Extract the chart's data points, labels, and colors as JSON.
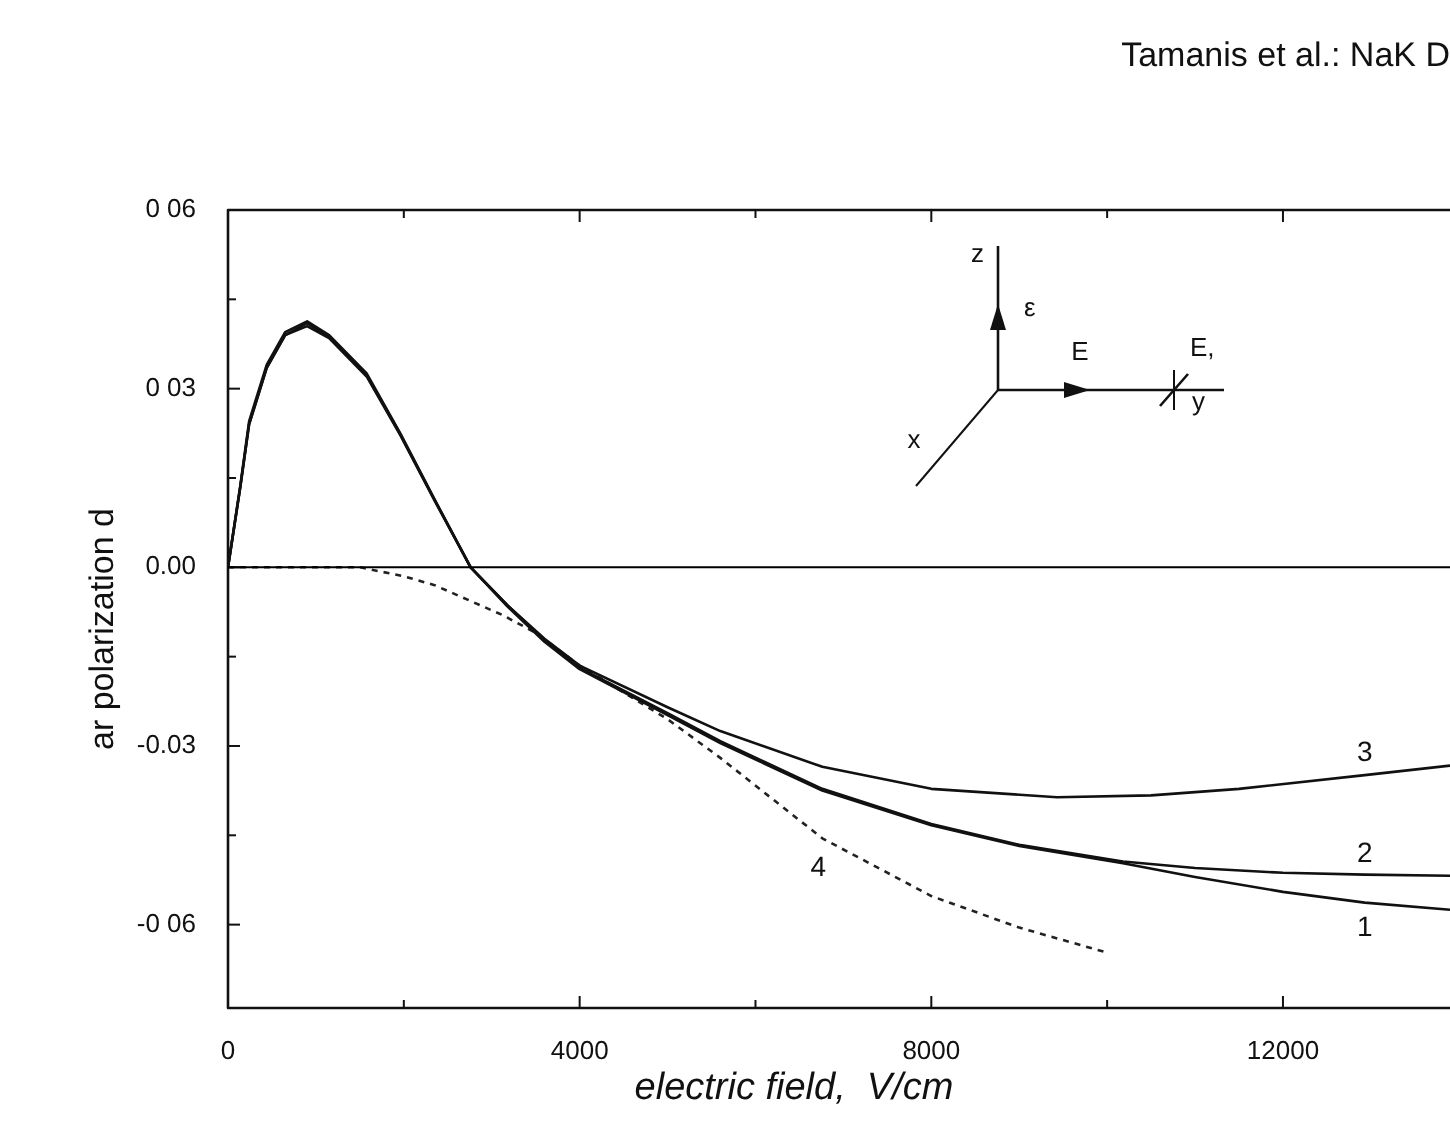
{
  "chart_data": {
    "type": "line",
    "title": "Tamanis et al.: NaK D",
    "xlabel": "electric field,  V/cm",
    "ylabel": "ar polarization d",
    "xlim": [
      0,
      13900
    ],
    "ylim": [
      -0.074,
      0.06
    ],
    "xticks": [
      0,
      {
        "value": 2000,
        "label": null
      },
      4000,
      {
        "value": 6000,
        "label": null
      },
      8000,
      {
        "value": 10000,
        "label": null
      },
      12000
    ],
    "yticks": [
      {
        "value": 0.06,
        "label": "0 06"
      },
      {
        "value": 0.045,
        "label": null
      },
      {
        "value": 0.03,
        "label": "0 03"
      },
      {
        "value": 0.015,
        "label": null
      },
      {
        "value": 0,
        "label": "0.00"
      },
      {
        "value": -0.015,
        "label": null
      },
      {
        "value": -0.03,
        "label": "-0.03"
      },
      {
        "value": -0.045,
        "label": null
      },
      {
        "value": -0.06,
        "label": "-0 06"
      }
    ],
    "grid": false,
    "legend": false,
    "marker": "none",
    "ref_lines": [
      {
        "axis": "y",
        "value": 0,
        "color": "#000000"
      }
    ],
    "series": [
      {
        "name": "1",
        "color": "#111111",
        "line_style": "solid",
        "x": [
          0,
          140,
          240,
          440,
          650,
          900,
          1150,
          1580,
          1960,
          2350,
          2760,
          3180,
          3600,
          4000,
          5000,
          5600,
          6760,
          8000,
          9000,
          10180,
          11000,
          12000,
          12930,
          13900
        ],
        "values": [
          0,
          0.0135,
          0.024,
          0.0335,
          0.039,
          0.0405,
          0.0385,
          0.032,
          0.0222,
          0.0112,
          0,
          -0.0066,
          -0.0125,
          -0.0171,
          -0.0248,
          -0.0295,
          -0.0375,
          -0.0433,
          -0.0468,
          -0.0497,
          -0.052,
          -0.0545,
          -0.0563,
          -0.0575
        ]
      },
      {
        "name": "2",
        "color": "#111111",
        "line_style": "solid",
        "x": [
          0,
          140,
          240,
          440,
          650,
          900,
          1150,
          1580,
          1960,
          2350,
          2760,
          3180,
          3600,
          4000,
          5000,
          5600,
          6760,
          8000,
          9000,
          10180,
          11000,
          12000,
          12930,
          13900
        ],
        "values": [
          0,
          0.0137,
          0.0245,
          0.034,
          0.0395,
          0.0413,
          0.039,
          0.0325,
          0.0225,
          0.0114,
          0,
          -0.0064,
          -0.0123,
          -0.0169,
          -0.0245,
          -0.0292,
          -0.0372,
          -0.0431,
          -0.0466,
          -0.0494,
          -0.0505,
          -0.0513,
          -0.0516,
          -0.0518
        ]
      },
      {
        "name": "3",
        "color": "#111111",
        "line_style": "solid",
        "x": [
          0,
          140,
          240,
          440,
          650,
          900,
          1150,
          1580,
          1960,
          2350,
          2760,
          3180,
          3600,
          4000,
          5000,
          5600,
          6760,
          8000,
          9430,
          10500,
          11500,
          12930,
          13900
        ],
        "values": [
          0,
          0.0135,
          0.024,
          0.0335,
          0.039,
          0.041,
          0.0387,
          0.0322,
          0.0223,
          0.0113,
          0,
          -0.0064,
          -0.012,
          -0.0165,
          -0.0235,
          -0.0275,
          -0.0335,
          -0.0372,
          -0.0386,
          -0.0383,
          -0.0372,
          -0.0349,
          -0.0333
        ]
      },
      {
        "name": "4",
        "color": "#222222",
        "line_style": "dashed",
        "x": [
          0,
          1500,
          2000,
          2350,
          3120,
          3500,
          4000,
          5000,
          5600,
          6760,
          8000,
          9000,
          10000
        ],
        "values": [
          0,
          0,
          -0.0015,
          -0.003,
          -0.008,
          -0.011,
          -0.0165,
          -0.0255,
          -0.032,
          -0.0455,
          -0.0552,
          -0.0605,
          -0.0647
        ]
      }
    ],
    "annotations": [
      "z",
      "ε",
      "E",
      "E,",
      "y",
      "x"
    ]
  }
}
